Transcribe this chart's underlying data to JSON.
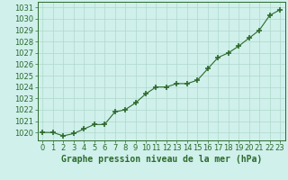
{
  "x": [
    0,
    1,
    2,
    3,
    4,
    5,
    6,
    7,
    8,
    9,
    10,
    11,
    12,
    13,
    14,
    15,
    16,
    17,
    18,
    19,
    20,
    21,
    22,
    23
  ],
  "y": [
    1020.0,
    1020.0,
    1019.7,
    1019.9,
    1020.3,
    1020.7,
    1020.7,
    1021.8,
    1022.0,
    1022.6,
    1023.4,
    1024.0,
    1024.0,
    1024.3,
    1024.3,
    1024.6,
    1025.6,
    1026.6,
    1027.0,
    1027.6,
    1028.3,
    1029.0,
    1030.3,
    1030.8
  ],
  "line_color": "#2d6a2d",
  "marker": "+",
  "marker_size": 5,
  "bg_color": "#cff0eb",
  "grid_color": "#b0d8cc",
  "xlabel": "Graphe pression niveau de la mer (hPa)",
  "xlabel_fontsize": 7,
  "tick_fontsize": 6,
  "ylim": [
    1019.3,
    1031.5
  ],
  "yticks": [
    1020,
    1021,
    1022,
    1023,
    1024,
    1025,
    1026,
    1027,
    1028,
    1029,
    1030,
    1031
  ],
  "xticks": [
    0,
    1,
    2,
    3,
    4,
    5,
    6,
    7,
    8,
    9,
    10,
    11,
    12,
    13,
    14,
    15,
    16,
    17,
    18,
    19,
    20,
    21,
    22,
    23
  ],
  "label_color": "#2d6a2d"
}
